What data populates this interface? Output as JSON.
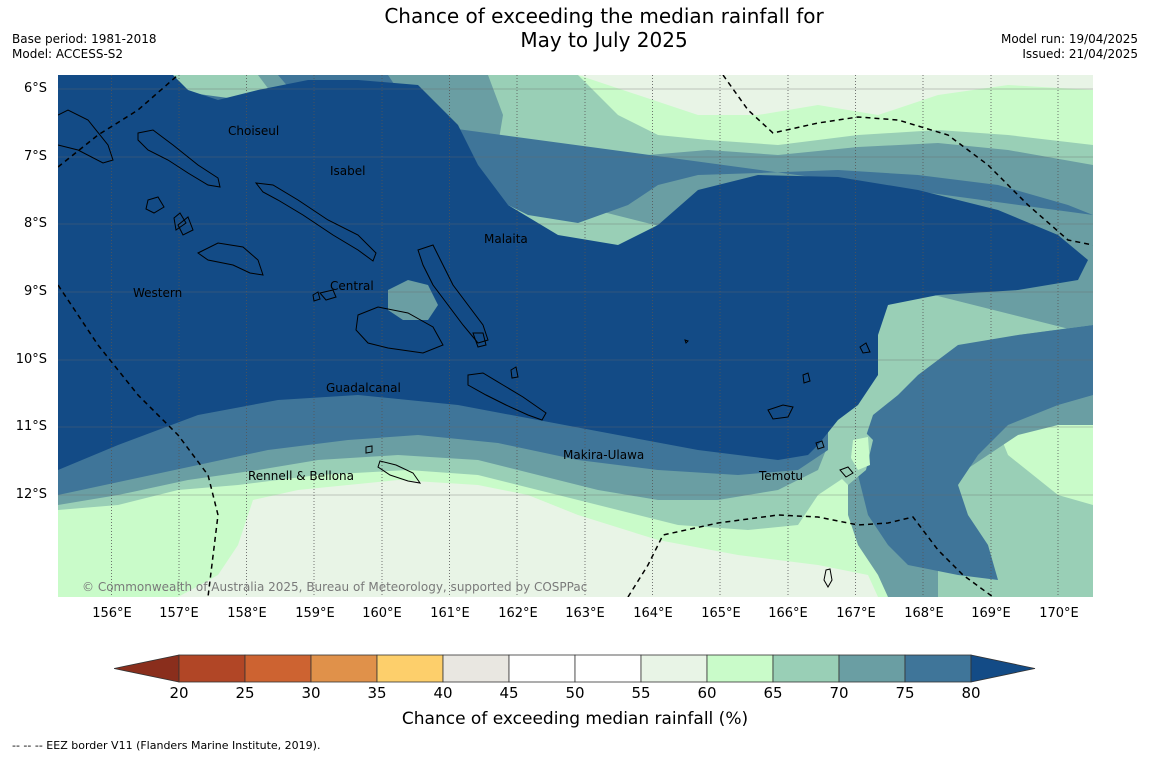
{
  "title_line1": "Chance of exceeding the median rainfall for",
  "title_line2": "May to July 2025",
  "base_period": "Base period: 1981-2018",
  "model": "Model: ACCESS-S2",
  "model_run": "Model run: 19/04/2025",
  "issued": "Issued: 21/04/2025",
  "lat_labels": [
    "6°S",
    "7°S",
    "8°S",
    "9°S",
    "10°S",
    "11°S",
    "12°S"
  ],
  "lon_labels": [
    "156°E",
    "157°E",
    "158°E",
    "159°E",
    "160°E",
    "161°E",
    "162°E",
    "163°E",
    "164°E",
    "165°E",
    "166°E",
    "167°E",
    "168°E",
    "169°E",
    "170°E"
  ],
  "places": {
    "choiseul": "Choiseul",
    "isabel": "Isabel",
    "malaita": "Malaita",
    "central": "Central",
    "western": "Western",
    "guadalcanal": "Guadalcanal",
    "makira_ulawa": "Makira-Ulawa",
    "rennell_bellona": "Rennell & Bellona",
    "temotu": "Temotu"
  },
  "copyright": "© Commonwealth of Australia 2025, Bureau of Meteorology, supported by COSPPac",
  "colorbar": {
    "title": "Chance of exceeding median rainfall (%)",
    "ticks": [
      "20",
      "25",
      "30",
      "35",
      "40",
      "45",
      "50",
      "55",
      "60",
      "65",
      "70",
      "75",
      "80"
    ],
    "colors": [
      "#8a2e1c",
      "#b14626",
      "#cd6331",
      "#e0914a",
      "#fdcf6b",
      "#e9e7e1",
      "#ffffff",
      "#ffffff",
      "#e8f4e6",
      "#c9fbc9",
      "#99cfb6",
      "#6a9ea3",
      "#3f7599",
      "#134b86"
    ]
  },
  "footnote": "--  --  -- EEZ border V11 (Flanders Marine Institute, 2019).",
  "colors": {
    "deep_blue": "#134b86",
    "blue": "#3f7599",
    "teal": "#6a9ea3",
    "seagreen": "#99cfb6",
    "light_green": "#c9fbc9",
    "pale_green": "#e8f4e6",
    "white": "#ffffff"
  }
}
